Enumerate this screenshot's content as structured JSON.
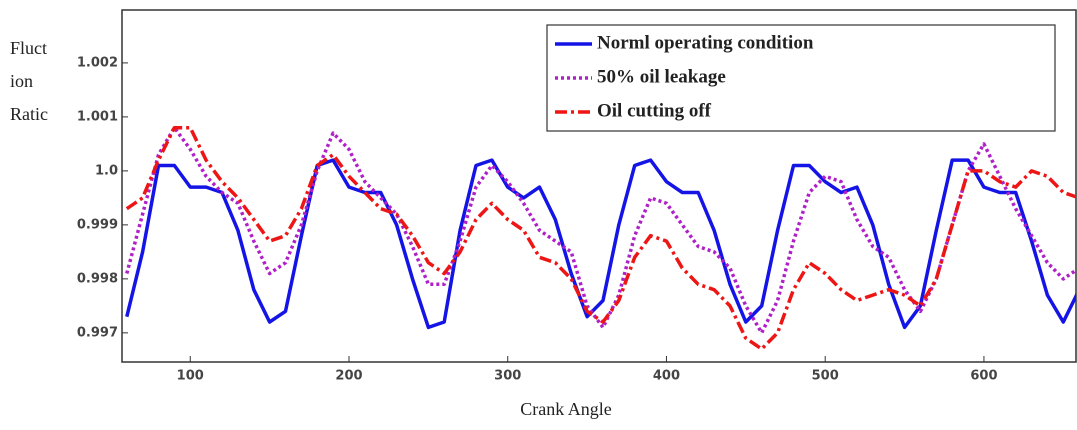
{
  "chart_data": {
    "type": "line",
    "ylabel_lines": [
      "Fluct",
      "ion",
      "Ratic"
    ],
    "xlabel": "Crank Angle",
    "x": [
      60,
      70,
      80,
      90,
      100,
      110,
      120,
      130,
      140,
      150,
      160,
      170,
      180,
      190,
      200,
      210,
      220,
      230,
      240,
      250,
      260,
      270,
      280,
      290,
      300,
      310,
      320,
      330,
      340,
      350,
      360,
      370,
      380,
      390,
      400,
      410,
      420,
      430,
      440,
      450,
      460,
      470,
      480,
      490,
      500,
      510,
      520,
      530,
      540,
      550,
      560,
      570,
      580,
      590,
      600,
      610,
      620,
      630,
      640,
      650,
      660
    ],
    "series": [
      {
        "name": "Norml operating condition",
        "color": "#1414e6",
        "style": "solid",
        "values": [
          0.9973,
          0.9985,
          1.0001,
          1.0001,
          0.9997,
          0.9997,
          0.9996,
          0.9989,
          0.9978,
          0.9972,
          0.9974,
          0.9988,
          1.0001,
          1.0002,
          0.9997,
          0.9996,
          0.9996,
          0.999,
          0.998,
          0.9971,
          0.9972,
          0.9989,
          1.0001,
          1.0002,
          0.9997,
          0.9995,
          0.9997,
          0.9991,
          0.9981,
          0.9973,
          0.9976,
          0.999,
          1.0001,
          1.0002,
          0.9998,
          0.9996,
          0.9996,
          0.9989,
          0.9979,
          0.9972,
          0.9975,
          0.9989,
          1.0001,
          1.0001,
          0.9998,
          0.9996,
          0.9997,
          0.999,
          0.9979,
          0.9971,
          0.9975,
          0.9989,
          1.0002,
          1.0002,
          0.9997,
          0.9996,
          0.9996,
          0.9987,
          0.9977,
          0.9972,
          0.9978
        ]
      },
      {
        "name": "50% oil leakage",
        "color": "#b020c8",
        "style": "dotted",
        "values": [
          0.9981,
          0.9992,
          1.0003,
          1.0008,
          1.0004,
          0.9999,
          0.9996,
          0.9994,
          0.9987,
          0.9981,
          0.9983,
          0.999,
          1.0,
          1.0007,
          1.0004,
          0.9998,
          0.9995,
          0.9992,
          0.9986,
          0.9979,
          0.9979,
          0.9987,
          0.9997,
          1.0001,
          0.9998,
          0.9994,
          0.9989,
          0.9987,
          0.9985,
          0.9975,
          0.9971,
          0.9977,
          0.9988,
          0.9995,
          0.9994,
          0.999,
          0.9986,
          0.9985,
          0.9982,
          0.9975,
          0.997,
          0.9976,
          0.9987,
          0.9996,
          0.9999,
          0.9998,
          0.9991,
          0.9986,
          0.9984,
          0.9978,
          0.9974,
          0.998,
          0.999,
          1.0,
          1.0005,
          0.9999,
          0.9993,
          0.9988,
          0.9983,
          0.998,
          0.9982
        ]
      },
      {
        "name": "Oil cutting off",
        "color": "#ee1515",
        "style": "dashdot",
        "values": [
          0.9993,
          0.9995,
          1.0002,
          1.0008,
          1.0008,
          1.0002,
          0.9998,
          0.9995,
          0.9991,
          0.9987,
          0.9988,
          0.9993,
          1.0001,
          1.0003,
          0.9999,
          0.9996,
          0.9993,
          0.9992,
          0.9988,
          0.9983,
          0.9981,
          0.9985,
          0.9991,
          0.9994,
          0.9991,
          0.9989,
          0.9984,
          0.9983,
          0.998,
          0.9974,
          0.9972,
          0.9976,
          0.9984,
          0.9988,
          0.9987,
          0.9982,
          0.9979,
          0.9978,
          0.9975,
          0.9969,
          0.9967,
          0.997,
          0.9978,
          0.9983,
          0.9981,
          0.9978,
          0.9976,
          0.9977,
          0.9978,
          0.9977,
          0.9975,
          0.998,
          0.999,
          1.0,
          1.0,
          0.9998,
          0.9997,
          1.0,
          0.9999,
          0.9996,
          0.9995
        ]
      }
    ],
    "xlim": [
      57,
      658
    ],
    "xticks": [
      100,
      200,
      300,
      400,
      500,
      600
    ],
    "ylim": [
      0.99646,
      1.00298
    ],
    "yticks": [
      0.997,
      0.998,
      0.999,
      {
        "value": 1,
        "label": "1.0"
      },
      1.001,
      1.002
    ],
    "legend": "top-right"
  }
}
